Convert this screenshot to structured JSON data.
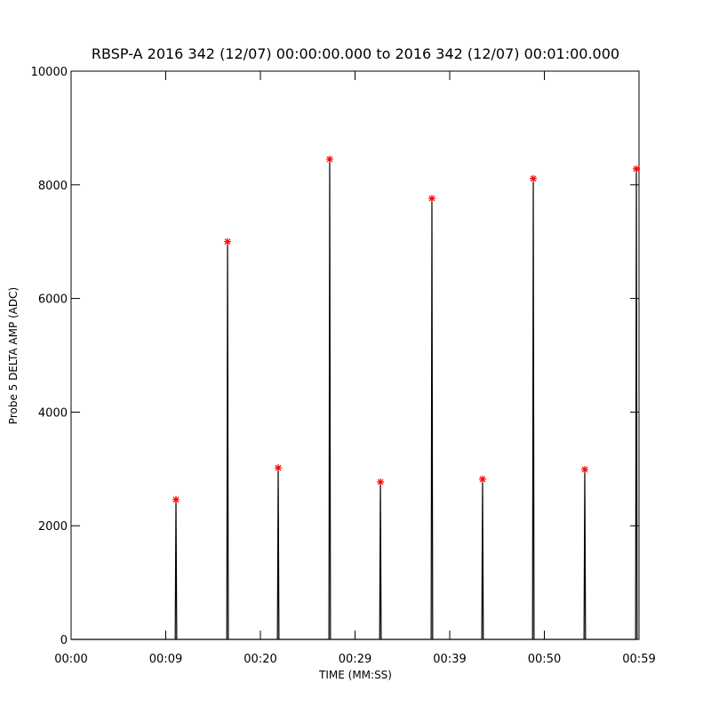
{
  "chart_data": {
    "type": "line",
    "title": "RBSP-A 2016 342 (12/07) 00:00:00.000 to 2016 342 (12/07) 00:01:00.000",
    "x_label": "TIME (MM:SS)",
    "y_label": "Probe 5 DELTA AMP (ADC)",
    "xlim": [
      0,
      60
    ],
    "xticks": [
      {
        "value": 0,
        "label": "00:00"
      },
      {
        "value": 10,
        "label": "00:09"
      },
      {
        "value": 20,
        "label": "00:20"
      },
      {
        "value": 30,
        "label": "00:29"
      },
      {
        "value": 40,
        "label": "00:39"
      },
      {
        "value": 50,
        "label": "00:50"
      },
      {
        "value": 60,
        "label": "00:59"
      }
    ],
    "ylim": [
      0,
      10000
    ],
    "yticks": [
      0,
      2000,
      4000,
      6000,
      8000,
      10000
    ],
    "series": [
      {
        "color": "#000000",
        "x": [
          0,
          11.0,
          11.08,
          11.16,
          16.45,
          16.53,
          16.61,
          21.8,
          21.88,
          21.96,
          27.24,
          27.32,
          27.4,
          32.6,
          32.68,
          32.76,
          38.04,
          38.12,
          38.2,
          43.39,
          43.47,
          43.55,
          48.75,
          48.83,
          48.91,
          54.19,
          54.27,
          54.35,
          59.64,
          59.72,
          59.8
        ],
        "values": [
          0,
          0,
          2460,
          0,
          0,
          7000,
          0,
          0,
          3020,
          0,
          0,
          8450,
          0,
          0,
          2770,
          0,
          0,
          7760,
          0,
          0,
          2820,
          0,
          0,
          8110,
          0,
          0,
          2990,
          0,
          0,
          8280,
          0
        ]
      },
      {
        "color": "#ff0000",
        "marker": "star",
        "x": [
          11.08,
          16.53,
          21.88,
          27.32,
          32.68,
          38.12,
          43.47,
          48.83,
          54.27,
          59.72
        ],
        "values": [
          2460,
          7000,
          3020,
          8450,
          2770,
          7760,
          2820,
          8110,
          2990,
          8280
        ]
      }
    ]
  }
}
